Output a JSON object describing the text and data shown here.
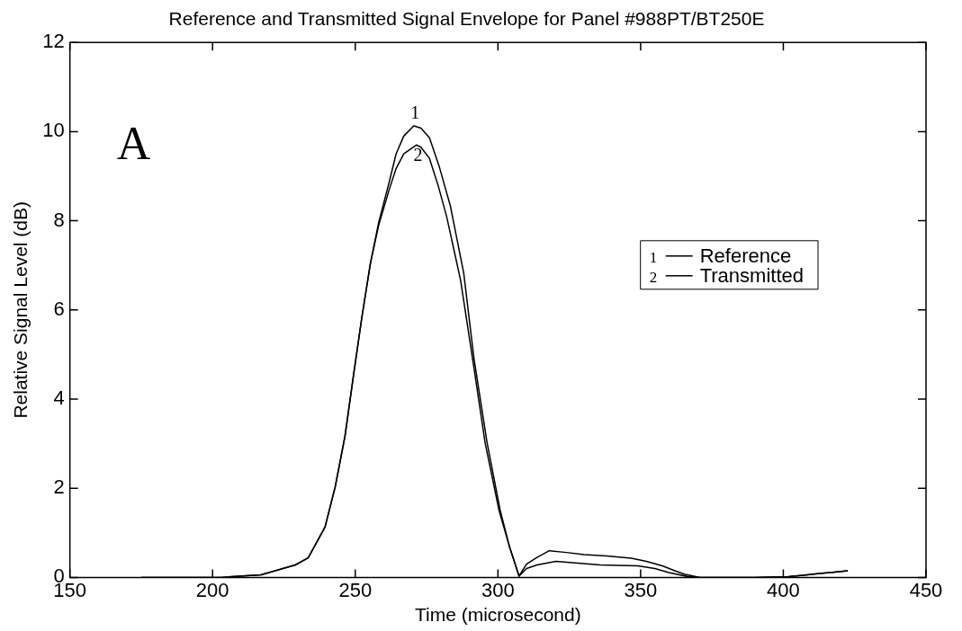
{
  "chart_data": {
    "type": "line",
    "title": "Reference and Transmitted Signal Envelope for Panel #988PT/BT250E",
    "xlabel": "Time (microsecond)",
    "ylabel": "Relative Signal Level (dB)",
    "xlim": [
      150,
      450
    ],
    "xticks": [
      150,
      200,
      250,
      300,
      350,
      400,
      450
    ],
    "ylim": [
      0,
      12
    ],
    "yticks": [
      0,
      2,
      4,
      6,
      8,
      10,
      12
    ],
    "grid": false,
    "legend": "right",
    "marker": "none",
    "line_style": "solid",
    "annotations": [
      "A",
      {
        "text": "1",
        "x": 271,
        "y": 10.13
      },
      {
        "text": "2",
        "x": 272,
        "y": 9.7
      }
    ],
    "series": [
      {
        "name": "Reference",
        "color": "#000000",
        "x": [
          175,
          203,
          217,
          229,
          233.5,
          239.4,
          243,
          246.4,
          249.4,
          252.3,
          255.3,
          258.2,
          261.9,
          264.3,
          267,
          270.5,
          273,
          276,
          279.5,
          283.3,
          288,
          291.6,
          296.2,
          300.8,
          304,
          307.4,
          310,
          313.7,
          318,
          324,
          330.2,
          338,
          346.7,
          352,
          357.6,
          362,
          365.5,
          370.8,
          380,
          390,
          401.8,
          407,
          412.7,
          418,
          422.6
        ],
        "values": [
          0,
          0,
          0.06,
          0.28,
          0.44,
          1.13,
          2.04,
          3.17,
          4.54,
          5.83,
          7.04,
          7.96,
          8.87,
          9.5,
          9.9,
          10.13,
          10.08,
          9.86,
          9.2,
          8.34,
          6.83,
          4.91,
          3.02,
          1.5,
          0.7,
          0.03,
          0.3,
          0.45,
          0.6,
          0.56,
          0.51,
          0.48,
          0.43,
          0.36,
          0.26,
          0.15,
          0.07,
          0,
          0,
          0,
          0.02,
          0.05,
          0.09,
          0.12,
          0.15
        ]
      },
      {
        "name": "Transmitted",
        "color": "#000000",
        "x": [
          175,
          203,
          217,
          229,
          233.5,
          239.4,
          243,
          246.4,
          249.4,
          252.3,
          255.3,
          258.2,
          261.9,
          264.3,
          267,
          271.4,
          273,
          276,
          279,
          282,
          286.9,
          291.6,
          295.5,
          300.4,
          304,
          307.4,
          310,
          313.7,
          320.3,
          328,
          335.8,
          342,
          349,
          355,
          359.9,
          366.5,
          370.8,
          380,
          390,
          401.8,
          407,
          412.7,
          418,
          422.6
        ],
        "values": [
          0,
          0,
          0.06,
          0.28,
          0.44,
          1.13,
          2.04,
          3.17,
          4.54,
          5.83,
          7.04,
          7.9,
          8.7,
          9.17,
          9.5,
          9.7,
          9.65,
          9.4,
          8.8,
          8.1,
          6.67,
          4.7,
          3.02,
          1.5,
          0.7,
          0.03,
          0.2,
          0.28,
          0.36,
          0.32,
          0.28,
          0.27,
          0.26,
          0.2,
          0.11,
          0.02,
          0,
          0,
          0,
          0.02,
          0.05,
          0.09,
          0.12,
          0.15
        ]
      }
    ]
  }
}
